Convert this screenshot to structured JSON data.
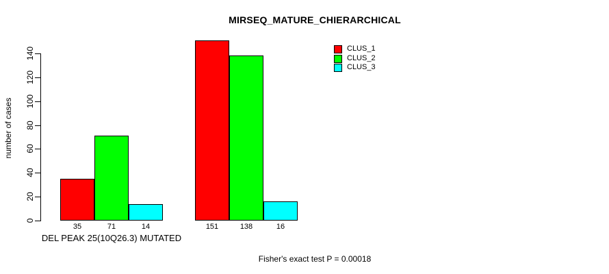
{
  "chart_data": {
    "type": "bar",
    "title": "MIRSEQ_MATURE_CHIERARCHICAL",
    "ylabel": "number of cases",
    "ylim": [
      0,
      140
    ],
    "yticks": [
      0,
      20,
      40,
      60,
      80,
      100,
      120,
      140
    ],
    "categories": [
      "DEL PEAK 25(10Q26.3) MUTATED",
      ""
    ],
    "series": [
      {
        "name": "CLUS_1",
        "color": "#ff0000",
        "values": [
          35,
          151
        ]
      },
      {
        "name": "CLUS_2",
        "color": "#00ff00",
        "values": [
          71,
          138
        ]
      },
      {
        "name": "CLUS_3",
        "color": "#00ffff",
        "values": [
          14,
          16
        ]
      }
    ],
    "bar_value_labels": [
      [
        35,
        71,
        14
      ],
      [
        151,
        138,
        16
      ]
    ],
    "legend_position": "top-right",
    "grid": false,
    "footer": "Fisher's exact test P = 0.00018"
  }
}
